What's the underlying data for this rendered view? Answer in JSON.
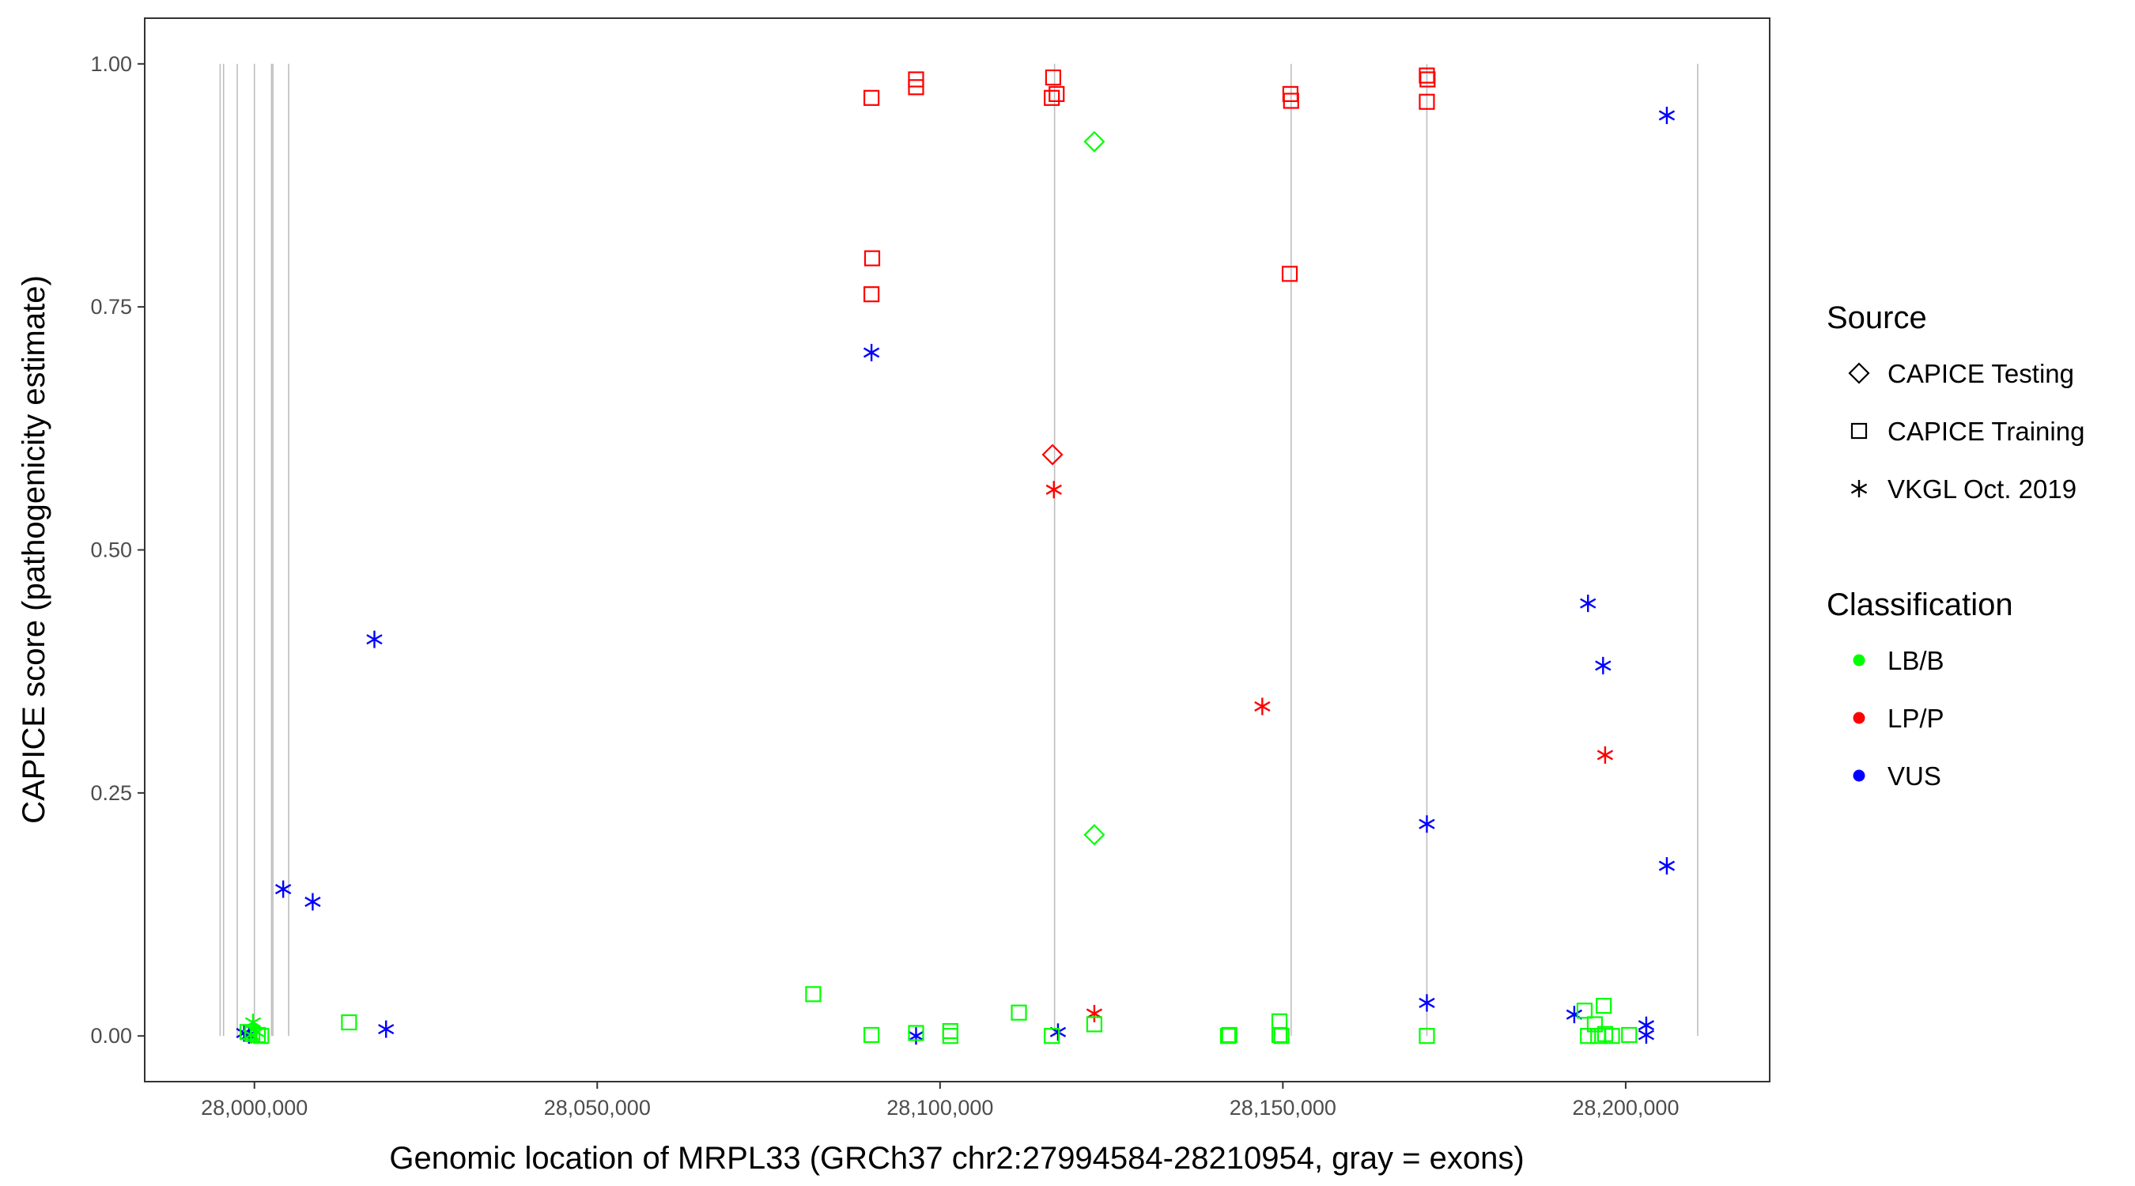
{
  "chart_data": {
    "type": "scatter",
    "title": "",
    "xlabel": "Genomic location of MRPL33 (GRCh37 chr2:27994584-28210954, gray = exons)",
    "ylabel": "CAPICE score (pathogenicity estimate)",
    "xlim": [
      27984000,
      28221000
    ],
    "ylim": [
      -0.047,
      1.047
    ],
    "x_ticks": [
      28000000,
      28050000,
      28100000,
      28150000,
      28200000
    ],
    "x_tick_labels": [
      "28,000,000",
      "28,050,000",
      "28,100,000",
      "28,150,000",
      "28,200,000"
    ],
    "y_ticks": [
      0,
      0.25,
      0.5,
      0.75,
      1.0
    ],
    "y_tick_labels": [
      "0.00",
      "0.25",
      "0.50",
      "0.75",
      "1.00"
    ],
    "grid": false,
    "legend_position": "right",
    "exons": [
      27995000,
      27995500,
      27997500,
      28000000,
      28002500,
      28002700,
      28005000,
      28116700,
      28151200,
      28171000,
      28210500
    ],
    "legend": {
      "source_title": "Source",
      "source_items": [
        {
          "label": "CAPICE Testing",
          "shape": "diamond"
        },
        {
          "label": "CAPICE Training",
          "shape": "square"
        },
        {
          "label": "VKGL Oct. 2019",
          "shape": "asterisk"
        }
      ],
      "class_title": "Classification",
      "class_items": [
        {
          "label": "LB/B",
          "color": "#00ff00"
        },
        {
          "label": "LP/P",
          "color": "#ff0000"
        },
        {
          "label": "VUS",
          "color": "#0000ff"
        }
      ]
    },
    "colors": {
      "LB/B": "#00ff00",
      "LP/P": "#ff0000",
      "VUS": "#0000ff"
    },
    "series": [
      {
        "source": "CAPICE Training",
        "classification": "LP/P",
        "points": [
          [
            28090000,
            0.965
          ],
          [
            28096500,
            0.984
          ],
          [
            28096500,
            0.976
          ],
          [
            28116500,
            0.986
          ],
          [
            28116300,
            0.965
          ],
          [
            28117000,
            0.969
          ],
          [
            28151100,
            0.969
          ],
          [
            28151200,
            0.962
          ],
          [
            28171000,
            0.988
          ],
          [
            28171100,
            0.984
          ],
          [
            28171000,
            0.961
          ],
          [
            28090100,
            0.8
          ],
          [
            28090000,
            0.763
          ],
          [
            28151000,
            0.784
          ]
        ]
      },
      {
        "source": "CAPICE Testing",
        "classification": "LB/B",
        "points": [
          [
            28122500,
            0.92
          ],
          [
            28122500,
            0.207
          ]
        ]
      },
      {
        "source": "CAPICE Testing",
        "classification": "LP/P",
        "points": [
          [
            28116400,
            0.598
          ]
        ]
      },
      {
        "source": "VKGL Oct. 2019",
        "classification": "VUS",
        "points": [
          [
            28206000,
            0.947
          ],
          [
            28090000,
            0.703
          ],
          [
            28017500,
            0.408
          ],
          [
            28004200,
            0.151
          ],
          [
            28008500,
            0.138
          ],
          [
            28194500,
            0.445
          ],
          [
            28196700,
            0.381
          ],
          [
            28171000,
            0.218
          ],
          [
            28206000,
            0.175
          ],
          [
            28171000,
            0.034
          ],
          [
            28192500,
            0.022
          ],
          [
            28019200,
            0.007
          ],
          [
            27998500,
            0.003
          ],
          [
            27999200,
            0.001
          ],
          [
            28096500,
            0.0
          ],
          [
            28117200,
            0.004
          ],
          [
            28203000,
            0.011
          ],
          [
            28203000,
            0.001
          ]
        ]
      },
      {
        "source": "VKGL Oct. 2019",
        "classification": "LP/P",
        "points": [
          [
            28116600,
            0.562
          ],
          [
            28147000,
            0.339
          ],
          [
            28197000,
            0.289
          ],
          [
            28122500,
            0.023
          ]
        ]
      },
      {
        "source": "VKGL Oct. 2019",
        "classification": "LB/B",
        "points": [
          [
            27999800,
            0.014
          ],
          [
            28000300,
            0.004
          ],
          [
            27999500,
            0.001
          ]
        ]
      },
      {
        "source": "CAPICE Training",
        "classification": "LB/B",
        "points": [
          [
            27999000,
            0.004
          ],
          [
            27999700,
            0.002
          ],
          [
            28000500,
            0.001
          ],
          [
            28001000,
            0.0
          ],
          [
            28013800,
            0.014
          ],
          [
            28081500,
            0.043
          ],
          [
            28090000,
            0.001
          ],
          [
            28096500,
            0.003
          ],
          [
            28101500,
            0.005
          ],
          [
            28101500,
            0.0
          ],
          [
            28111500,
            0.024
          ],
          [
            28116300,
            0.0
          ],
          [
            28122500,
            0.012
          ],
          [
            28142000,
            0.0
          ],
          [
            28142200,
            0.001
          ],
          [
            28149500,
            0.015
          ],
          [
            28149500,
            0.001
          ],
          [
            28149800,
            0.0
          ],
          [
            28171000,
            0.0
          ],
          [
            28194000,
            0.026
          ],
          [
            28194500,
            0.0
          ],
          [
            28195500,
            0.012
          ],
          [
            28196800,
            0.031
          ],
          [
            28196000,
            0.0
          ],
          [
            28197000,
            0.002
          ],
          [
            28198000,
            0.0
          ],
          [
            28200500,
            0.001
          ]
        ]
      }
    ]
  }
}
